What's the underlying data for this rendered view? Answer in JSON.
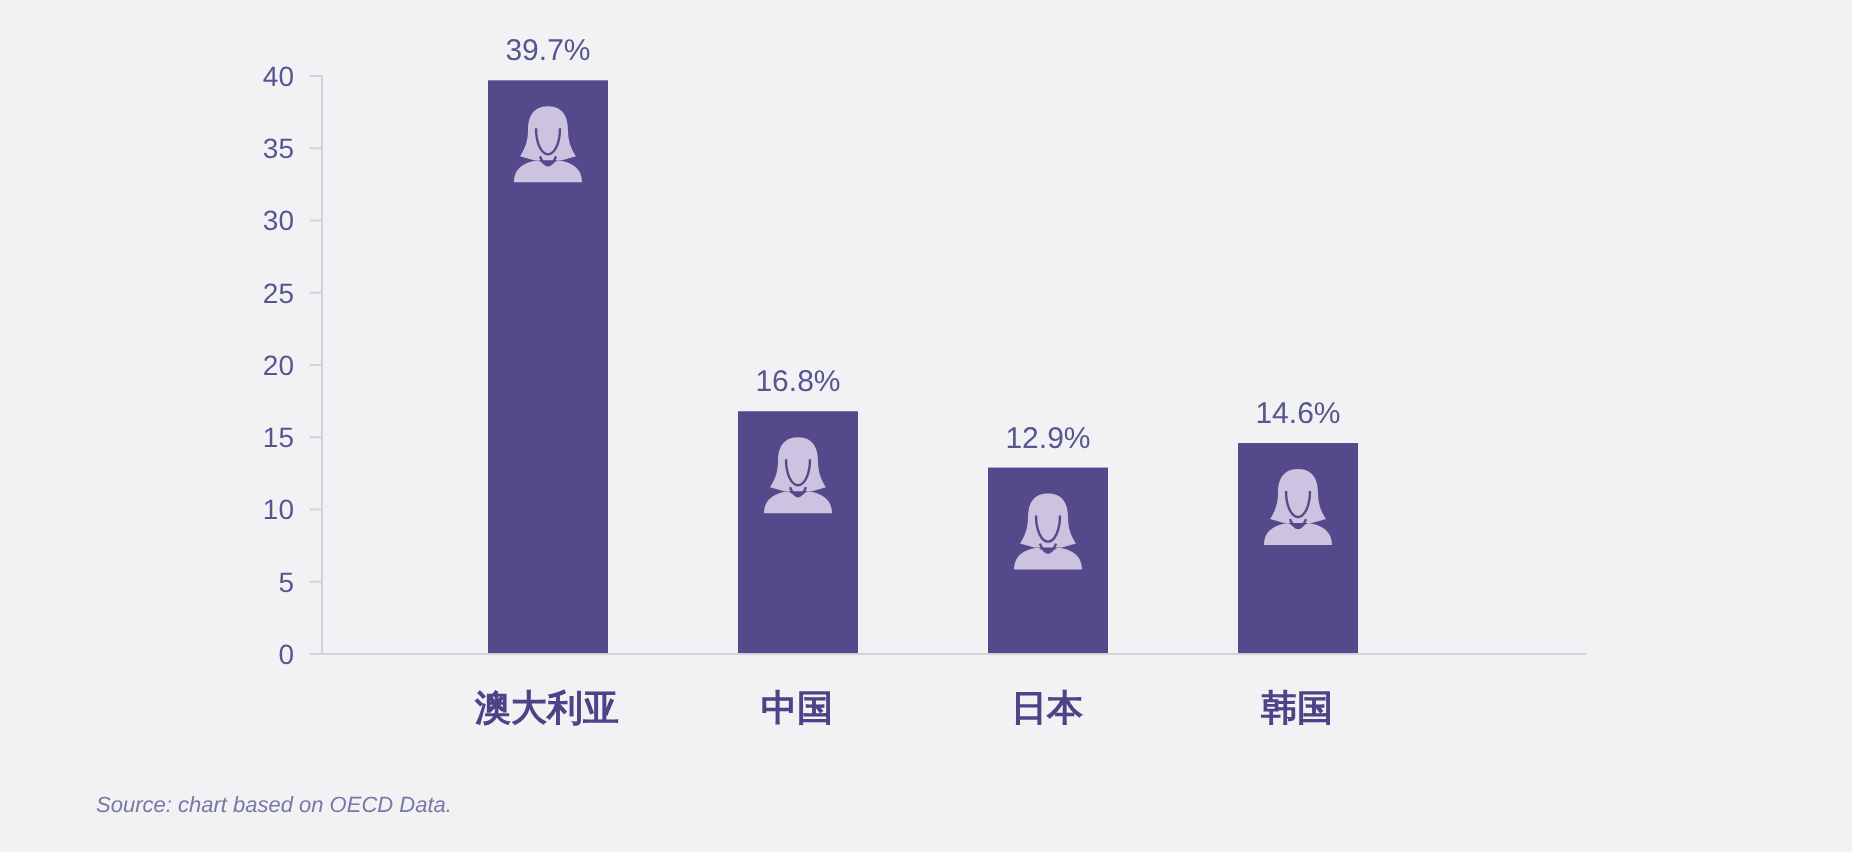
{
  "chart_data": {
    "type": "bar",
    "categories": [
      "澳大利亚",
      "中国",
      "日本",
      "韩国"
    ],
    "values": [
      39.7,
      16.8,
      12.9,
      14.6
    ],
    "value_labels": [
      "39.7%",
      "16.8%",
      "12.9%",
      "14.6%"
    ],
    "color": "#54498a",
    "ylim": [
      0,
      40
    ],
    "yticks": [
      0,
      5,
      10,
      15,
      20,
      25,
      30,
      35,
      40
    ],
    "annotations": [
      "Source: chart based on OECD Data."
    ]
  }
}
